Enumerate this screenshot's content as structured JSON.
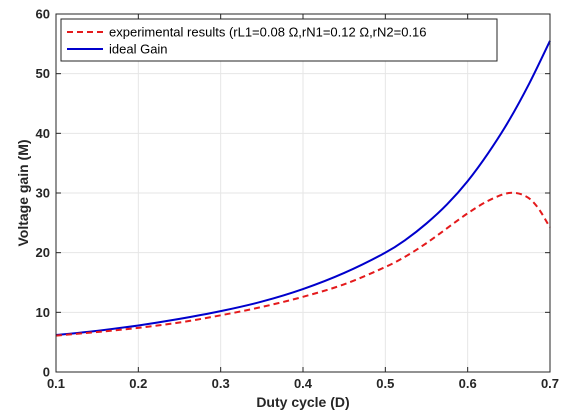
{
  "chart_data": {
    "type": "line",
    "title": "",
    "xlabel": "Duty cycle (D)",
    "ylabel": "Voltage gain (M)",
    "xlim": [
      0.1,
      0.7
    ],
    "ylim": [
      0,
      60
    ],
    "xticks": [
      "0.1",
      "0.2",
      "0.3",
      "0.4",
      "0.5",
      "0.6",
      "0.7"
    ],
    "yticks": [
      "0",
      "10",
      "20",
      "30",
      "40",
      "50",
      "60"
    ],
    "grid": true,
    "legend_position": "top-left",
    "series": [
      {
        "name": "experimental results (rL1=0.08 Ω,rN1=0.12 Ω,rN2=0.16",
        "color": "#e41a1c",
        "style": "dashed",
        "x": [
          0.1,
          0.15,
          0.2,
          0.25,
          0.3,
          0.35,
          0.4,
          0.45,
          0.5,
          0.525,
          0.55,
          0.575,
          0.6,
          0.625,
          0.65,
          0.67,
          0.685,
          0.7
        ],
        "y": [
          6.1,
          6.7,
          7.4,
          8.3,
          9.5,
          10.9,
          12.6,
          14.7,
          17.6,
          19.4,
          21.6,
          24.1,
          26.6,
          28.7,
          30.0,
          29.5,
          27.6,
          24.2
        ]
      },
      {
        "name": "ideal Gain",
        "color": "#0000cc",
        "style": "solid",
        "x": [
          0.1,
          0.15,
          0.2,
          0.25,
          0.3,
          0.35,
          0.4,
          0.45,
          0.5,
          0.525,
          0.55,
          0.575,
          0.6,
          0.625,
          0.65,
          0.675,
          0.7
        ],
        "y": [
          6.2,
          6.9,
          7.8,
          8.9,
          10.2,
          11.8,
          13.9,
          16.6,
          20.0,
          22.2,
          24.9,
          28.1,
          32.0,
          36.7,
          42.1,
          48.4,
          55.5
        ]
      }
    ]
  }
}
